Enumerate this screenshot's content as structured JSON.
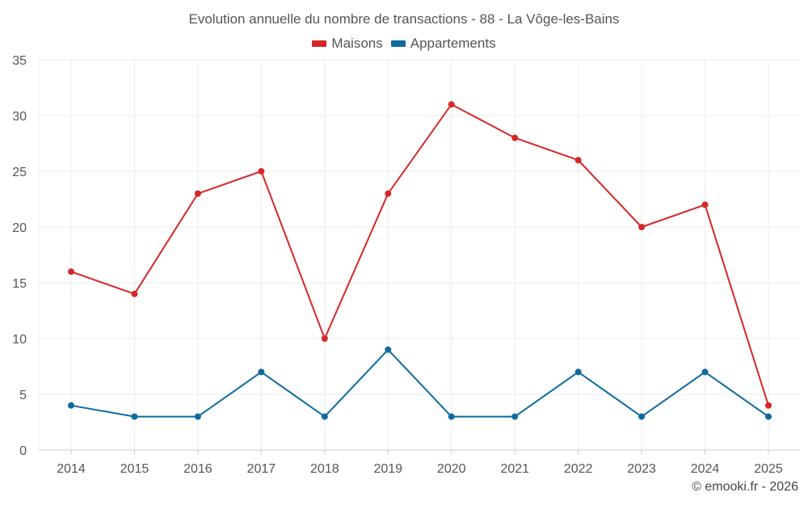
{
  "chart_data": {
    "type": "line",
    "title": "Evolution annuelle du nombre de transactions - 88 - La Vôge-les-Bains",
    "categories": [
      "2014",
      "2015",
      "2016",
      "2017",
      "2018",
      "2019",
      "2020",
      "2021",
      "2022",
      "2023",
      "2024",
      "2025"
    ],
    "series": [
      {
        "name": "Maisons",
        "color": "#d62728",
        "values": [
          16,
          14,
          23,
          25,
          10,
          23,
          31,
          28,
          26,
          20,
          22,
          4
        ]
      },
      {
        "name": "Appartements",
        "color": "#0f6aa0",
        "values": [
          4,
          3,
          3,
          7,
          3,
          9,
          3,
          3,
          7,
          3,
          7,
          3
        ]
      }
    ],
    "ylim": [
      0,
      35
    ],
    "yticks": [
      "0",
      "5",
      "10",
      "15",
      "20",
      "25",
      "30",
      "35"
    ],
    "xlabel": "",
    "ylabel": "",
    "grid": true,
    "legend": "top-center"
  },
  "credit": "© emooki.fr - 2026"
}
